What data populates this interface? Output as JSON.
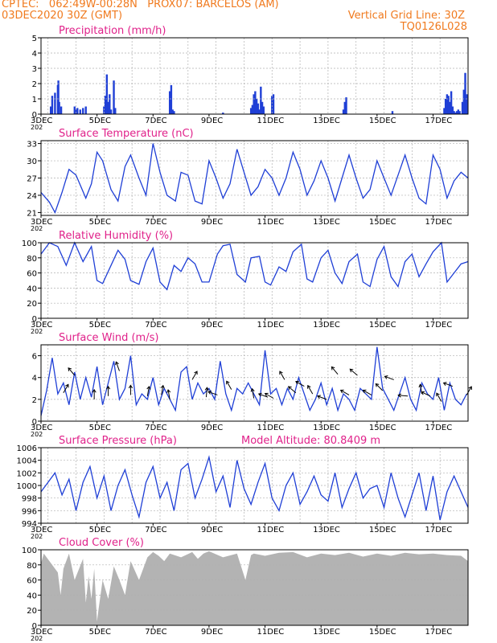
{
  "header": {
    "line1": "CPTEC:   062:49W-00:28N   PROX07: BARCELOS (AM)",
    "line2": "03DEC2020 30Z (GMT)",
    "grid_note": "Vertical Grid Line: 30Z",
    "code": "TQ0126L028"
  },
  "colors": {
    "header": "#f07a1e",
    "title": "#e0218a",
    "series": "#1f3fd6",
    "cloud": "#b3b3b3",
    "grid": "#b0b0b0"
  },
  "x_axis": {
    "start_label": "3DEC",
    "under_start_label": "202",
    "tick_labels": [
      "3DEC",
      "5DEC",
      "7DEC",
      "9DEC",
      "11DEC",
      "13DEC",
      "15DEC",
      "17DEC"
    ],
    "days_span": 15.25
  },
  "chart_data": [
    {
      "id": "precip",
      "type": "bar",
      "title": "Precipitation (mm/h)",
      "ylim": [
        0,
        5
      ],
      "yticks": [
        "0",
        "1",
        "2",
        "3",
        "4",
        "5"
      ],
      "x_unit": "days from 3DEC",
      "x": [
        0.35,
        0.38,
        0.4,
        0.5,
        0.6,
        0.62,
        0.65,
        0.72,
        1.2,
        1.25,
        1.3,
        1.4,
        1.5,
        1.6,
        2.25,
        2.3,
        2.35,
        2.4,
        2.45,
        2.5,
        2.6,
        2.65,
        4.6,
        4.65,
        4.7,
        4.75,
        6.5,
        7.5,
        7.55,
        7.6,
        7.65,
        7.7,
        7.75,
        7.8,
        7.85,
        7.9,
        7.95,
        8.25,
        8.3,
        10.8,
        10.85,
        10.9,
        12.55,
        14.4,
        14.45,
        14.5,
        14.55,
        14.6,
        14.65,
        14.7,
        14.75,
        14.8,
        14.85,
        14.9,
        14.95,
        15.05,
        15.1,
        15.15,
        15.2
      ],
      "values": [
        0.5,
        0.4,
        1.2,
        1.4,
        1.9,
        2.2,
        0.8,
        0.5,
        0.5,
        0.3,
        0.4,
        0.3,
        0.4,
        0.5,
        0.5,
        1.2,
        2.6,
        0.8,
        1.3,
        0.3,
        2.2,
        0.4,
        1.5,
        1.9,
        0.3,
        0.2,
        0.1,
        0.4,
        0.6,
        1.3,
        1.5,
        1.0,
        0.7,
        0.3,
        1.8,
        0.8,
        0.5,
        1.2,
        1.3,
        0.3,
        0.8,
        1.1,
        0.2,
        0.4,
        1.0,
        1.3,
        1.2,
        0.8,
        1.5,
        0.5,
        0.2,
        0.1,
        0.2,
        0.3,
        0.2,
        0.8,
        1.6,
        2.7,
        1.3
      ]
    },
    {
      "id": "temp",
      "type": "line",
      "title": "Surface Temperature (nC)",
      "ylim": [
        20.5,
        33.5
      ],
      "yticks": [
        "21",
        "24",
        "27",
        "30",
        "33"
      ],
      "ytick_values": [
        21,
        24,
        27,
        30,
        33
      ],
      "x_unit": "days from 3DEC",
      "x": [
        0,
        0.3,
        0.5,
        0.75,
        1.0,
        1.25,
        1.6,
        1.8,
        2.0,
        2.2,
        2.5,
        2.75,
        3.0,
        3.2,
        3.5,
        3.75,
        4.0,
        4.25,
        4.5,
        4.8,
        5.0,
        5.25,
        5.5,
        5.75,
        6.0,
        6.25,
        6.5,
        6.75,
        7.0,
        7.25,
        7.5,
        7.75,
        8.0,
        8.25,
        8.5,
        8.75,
        9.0,
        9.25,
        9.5,
        9.75,
        10.0,
        10.25,
        10.5,
        10.75,
        11.0,
        11.25,
        11.5,
        11.75,
        12.0,
        12.25,
        12.5,
        12.75,
        13.0,
        13.25,
        13.5,
        13.75,
        14.0,
        14.25,
        14.5,
        14.75,
        15.0,
        15.25
      ],
      "values": [
        24.5,
        22.8,
        21.0,
        24.5,
        28.5,
        27.5,
        23.5,
        26.0,
        31.5,
        30.0,
        25.0,
        23.0,
        29.0,
        31.0,
        27.0,
        24.0,
        33.0,
        28.0,
        24.0,
        23.0,
        28.0,
        27.5,
        23.0,
        22.5,
        30.0,
        27.0,
        23.5,
        26.0,
        32.0,
        28.0,
        24.0,
        25.5,
        28.5,
        27.0,
        24.0,
        27.0,
        31.5,
        28.5,
        24.0,
        26.5,
        30.0,
        27.0,
        23.0,
        27.0,
        31.0,
        27.0,
        23.5,
        25.0,
        30.0,
        27.0,
        24.0,
        27.5,
        31.0,
        27.0,
        23.5,
        22.5,
        31.0,
        28.5,
        23.5,
        26.5,
        28.0,
        27.0
      ]
    },
    {
      "id": "rh",
      "type": "line",
      "title": "Relative Humidity (%)",
      "ylim": [
        0,
        100
      ],
      "yticks": [
        "0",
        "20",
        "40",
        "60",
        "80",
        "100"
      ],
      "ytick_values": [
        0,
        20,
        40,
        60,
        80,
        100
      ],
      "x_unit": "days from 3DEC",
      "x": [
        0,
        0.3,
        0.6,
        0.9,
        1.2,
        1.5,
        1.8,
        2.0,
        2.2,
        2.5,
        2.75,
        3.0,
        3.2,
        3.5,
        3.75,
        4.0,
        4.25,
        4.5,
        4.75,
        5.0,
        5.25,
        5.5,
        5.75,
        6.0,
        6.3,
        6.5,
        6.75,
        7.0,
        7.3,
        7.5,
        7.8,
        8.0,
        8.2,
        8.5,
        8.75,
        9.0,
        9.3,
        9.5,
        9.7,
        10.0,
        10.25,
        10.5,
        10.75,
        11.0,
        11.3,
        11.5,
        11.75,
        12.0,
        12.25,
        12.5,
        12.75,
        13.0,
        13.25,
        13.5,
        13.75,
        14.0,
        14.3,
        14.5,
        14.75,
        15.0,
        15.25
      ],
      "values": [
        85,
        100,
        95,
        70,
        100,
        75,
        95,
        50,
        46,
        70,
        90,
        78,
        50,
        45,
        75,
        93,
        48,
        38,
        70,
        62,
        80,
        72,
        48,
        48,
        85,
        96,
        98,
        58,
        48,
        80,
        82,
        48,
        44,
        68,
        62,
        88,
        98,
        52,
        48,
        80,
        90,
        60,
        46,
        75,
        85,
        48,
        42,
        78,
        95,
        55,
        42,
        75,
        85,
        55,
        72,
        88,
        100,
        48,
        60,
        72,
        75
      ]
    },
    {
      "id": "wind",
      "type": "line",
      "title": "Surface Wind (m/s)",
      "ylim": [
        0,
        7
      ],
      "yticks": [
        "0",
        "2",
        "4",
        "6"
      ],
      "ytick_values": [
        0,
        2,
        4,
        6
      ],
      "x_unit": "days from 3DEC",
      "x": [
        0,
        0.2,
        0.4,
        0.6,
        0.8,
        1.0,
        1.2,
        1.4,
        1.6,
        1.8,
        2.0,
        2.2,
        2.4,
        2.6,
        2.8,
        3.0,
        3.2,
        3.4,
        3.6,
        3.8,
        4.0,
        4.2,
        4.4,
        4.6,
        4.8,
        5.0,
        5.2,
        5.4,
        5.6,
        5.8,
        6.0,
        6.2,
        6.4,
        6.6,
        6.8,
        7.0,
        7.2,
        7.4,
        7.6,
        7.8,
        8.0,
        8.2,
        8.4,
        8.6,
        8.8,
        9.0,
        9.2,
        9.4,
        9.6,
        9.8,
        10.0,
        10.2,
        10.4,
        10.6,
        10.8,
        11.0,
        11.2,
        11.4,
        11.6,
        11.8,
        12.0,
        12.2,
        12.4,
        12.6,
        12.8,
        13.0,
        13.2,
        13.4,
        13.6,
        13.8,
        14.0,
        14.2,
        14.4,
        14.6,
        14.8,
        15.0,
        15.2
      ],
      "values": [
        0.5,
        2.8,
        5.8,
        2.5,
        3.5,
        1.5,
        4.5,
        2.0,
        4.0,
        2.2,
        5.0,
        1.5,
        3.5,
        5.5,
        2.0,
        3.0,
        6.0,
        1.5,
        2.5,
        2.0,
        4.0,
        1.5,
        3.0,
        2.0,
        1.0,
        4.5,
        5.0,
        2.0,
        3.5,
        2.5,
        3.0,
        2.0,
        5.5,
        2.5,
        1.0,
        3.0,
        2.5,
        3.5,
        2.5,
        1.5,
        6.5,
        2.5,
        3.0,
        1.5,
        3.0,
        2.0,
        4.0,
        2.5,
        1.0,
        2.0,
        3.5,
        1.5,
        3.0,
        1.0,
        2.5,
        2.0,
        1.0,
        3.0,
        2.5,
        2.0,
        6.8,
        3.0,
        2.0,
        1.0,
        2.5,
        4.0,
        2.0,
        1.0,
        3.5,
        2.5,
        2.0,
        4.0,
        1.0,
        3.5,
        2.0,
        1.5,
        2.5
      ],
      "arrows_x": [
        0.8,
        1.2,
        1.9,
        2.4,
        2.8,
        3.2,
        3.8,
        4.3,
        4.6,
        5.4,
        5.9,
        6.3,
        6.8,
        7.6,
        8.1,
        8.3,
        8.7,
        9.1,
        9.4,
        9.7,
        10.2,
        10.6,
        11.0,
        11.3,
        11.8,
        12.2,
        12.6,
        13.1,
        13.6,
        13.9,
        14.3,
        14.7,
        15.2
      ],
      "arrows_y": [
        2.6,
        4.2,
        2.0,
        2.3,
        4.6,
        2.4,
        2.3,
        2.4,
        2.0,
        3.8,
        2.2,
        2.4,
        2.9,
        2.1,
        2.2,
        2.1,
        3.8,
        2.6,
        3.2,
        2.5,
        2.0,
        4.3,
        2.4,
        4.2,
        2.4,
        2.8,
        3.8,
        2.3,
        2.5,
        2.3,
        1.8,
        3.2,
        2.4
      ],
      "arrows_deg": [
        -60,
        -130,
        -90,
        -90,
        -110,
        -90,
        -80,
        -80,
        -100,
        -60,
        -85,
        -160,
        -120,
        -100,
        -160,
        -150,
        -120,
        -140,
        -150,
        -120,
        -160,
        -130,
        -150,
        -140,
        -150,
        -135,
        -160,
        -175,
        -100,
        -155,
        -120,
        -160,
        -60
      ]
    },
    {
      "id": "press",
      "type": "line",
      "title": "Surface Pressure (hPa)",
      "annotation": "Model Altitude: 80.8409 m",
      "ylim": [
        994,
        1006
      ],
      "yticks": [
        "994",
        "996",
        "998",
        "1000",
        "1002",
        "1004",
        "1006"
      ],
      "ytick_values": [
        994,
        996,
        998,
        1000,
        1002,
        1004,
        1006
      ],
      "x_unit": "days from 3DEC",
      "x": [
        0,
        0.25,
        0.5,
        0.75,
        1.0,
        1.25,
        1.5,
        1.75,
        2.0,
        2.25,
        2.5,
        2.75,
        3.0,
        3.25,
        3.5,
        3.75,
        4.0,
        4.25,
        4.5,
        4.75,
        5.0,
        5.25,
        5.5,
        5.75,
        6.0,
        6.25,
        6.5,
        6.75,
        7.0,
        7.25,
        7.5,
        7.75,
        8.0,
        8.25,
        8.5,
        8.75,
        9.0,
        9.25,
        9.5,
        9.75,
        10.0,
        10.25,
        10.5,
        10.75,
        11.0,
        11.25,
        11.5,
        11.75,
        12.0,
        12.25,
        12.5,
        12.75,
        13.0,
        13.25,
        13.5,
        13.75,
        14.0,
        14.25,
        14.5,
        14.75,
        15.0,
        15.25
      ],
      "values": [
        999.0,
        1000.5,
        1002.0,
        998.5,
        1001.0,
        996.0,
        1000.5,
        1003.0,
        998.0,
        1001.5,
        996.0,
        1000.0,
        1002.5,
        998.5,
        995.0,
        1000.5,
        1003.0,
        998.0,
        1000.5,
        996.0,
        1002.5,
        1003.5,
        998.0,
        1001.0,
        1004.5,
        999.0,
        1001.5,
        996.5,
        1004.0,
        999.5,
        997.0,
        1000.5,
        1003.5,
        998.0,
        996.0,
        1000.0,
        1002.0,
        997.0,
        999.0,
        1001.5,
        998.5,
        997.5,
        1002.0,
        996.5,
        999.5,
        1002.0,
        998.0,
        999.5,
        1000.0,
        996.5,
        1002.0,
        998.0,
        995.0,
        998.5,
        1002.0,
        996.0,
        1001.5,
        994.5,
        999.0,
        1001.5,
        999.0,
        996.5
      ]
    },
    {
      "id": "cloud",
      "type": "area",
      "title": "Cloud Cover (%)",
      "ylim": [
        0,
        100
      ],
      "yticks": [
        "0",
        "20",
        "40",
        "60",
        "80",
        "100"
      ],
      "ytick_values": [
        0,
        20,
        40,
        60,
        80,
        100
      ],
      "x_unit": "days from 3DEC",
      "x": [
        0,
        0.1,
        0.3,
        0.6,
        0.7,
        0.8,
        1.0,
        1.2,
        1.5,
        1.6,
        1.7,
        1.8,
        1.9,
        2.0,
        2.05,
        2.2,
        2.4,
        2.6,
        2.8,
        3.0,
        3.2,
        3.5,
        3.8,
        4.0,
        4.2,
        4.4,
        4.6,
        5.0,
        5.4,
        5.6,
        5.8,
        6.0,
        6.5,
        7.0,
        7.3,
        7.5,
        7.6,
        8.0,
        8.5,
        9.0,
        9.5,
        10.0,
        10.5,
        11.0,
        11.5,
        12.0,
        12.5,
        13.0,
        13.5,
        14.0,
        14.5,
        15.0,
        15.25
      ],
      "values": [
        82,
        95,
        85,
        70,
        40,
        75,
        95,
        60,
        88,
        30,
        65,
        35,
        75,
        5,
        20,
        60,
        35,
        78,
        60,
        40,
        85,
        60,
        90,
        97,
        92,
        85,
        95,
        90,
        97,
        88,
        95,
        98,
        90,
        95,
        60,
        93,
        95,
        92,
        96,
        97,
        90,
        95,
        93,
        96,
        91,
        95,
        92,
        96,
        94,
        95,
        93,
        92,
        85
      ]
    }
  ]
}
